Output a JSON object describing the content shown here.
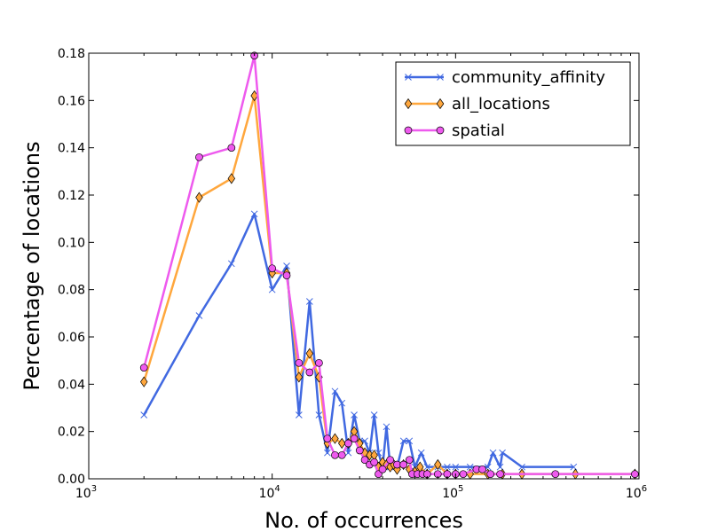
{
  "chart_data": {
    "type": "line",
    "xlabel": "No. of occurrences",
    "ylabel": "Percentage of locations",
    "xscale": "log",
    "xlim": [
      1000,
      1000000
    ],
    "ylim": [
      0,
      0.18
    ],
    "x_ticks": [
      {
        "base": "10",
        "exp": "3"
      },
      {
        "base": "10",
        "exp": "4"
      },
      {
        "base": "10",
        "exp": "5"
      },
      {
        "base": "10",
        "exp": "6"
      }
    ],
    "y_ticks": [
      "0.00",
      "0.02",
      "0.04",
      "0.06",
      "0.08",
      "0.10",
      "0.12",
      "0.14",
      "0.16",
      "0.18"
    ],
    "legend_position": "top-right",
    "series": [
      {
        "name": "community_affinity",
        "color": "#4169e1",
        "marker": "x",
        "points": [
          [
            2000,
            0.027
          ],
          [
            4000,
            0.069
          ],
          [
            6000,
            0.091
          ],
          [
            8000,
            0.112
          ],
          [
            10000,
            0.08
          ],
          [
            12000,
            0.09
          ],
          [
            14000,
            0.027
          ],
          [
            16000,
            0.075
          ],
          [
            18000,
            0.027
          ],
          [
            20000,
            0.011
          ],
          [
            22000,
            0.037
          ],
          [
            24000,
            0.032
          ],
          [
            26000,
            0.011
          ],
          [
            28000,
            0.027
          ],
          [
            30000,
            0.016
          ],
          [
            32000,
            0.016
          ],
          [
            34000,
            0.011
          ],
          [
            36000,
            0.027
          ],
          [
            38000,
            0.011
          ],
          [
            40000,
            0.005
          ],
          [
            42000,
            0.022
          ],
          [
            44000,
            0.005
          ],
          [
            48000,
            0.005
          ],
          [
            52000,
            0.016
          ],
          [
            56000,
            0.016
          ],
          [
            60000,
            0.005
          ],
          [
            65000,
            0.011
          ],
          [
            70000,
            0.005
          ],
          [
            80000,
            0.005
          ],
          [
            90000,
            0.005
          ],
          [
            100000,
            0.005
          ],
          [
            120000,
            0.005
          ],
          [
            150000,
            0.005
          ],
          [
            160000,
            0.011
          ],
          [
            175000,
            0.005
          ],
          [
            180000,
            0.011
          ],
          [
            230000,
            0.005
          ],
          [
            440000,
            0.005
          ]
        ]
      },
      {
        "name": "all_locations",
        "color": "#ffa73d",
        "marker": "diamond",
        "points": [
          [
            2000,
            0.041
          ],
          [
            4000,
            0.119
          ],
          [
            6000,
            0.127
          ],
          [
            8000,
            0.162
          ],
          [
            10000,
            0.087
          ],
          [
            12000,
            0.087
          ],
          [
            14000,
            0.043
          ],
          [
            16000,
            0.053
          ],
          [
            18000,
            0.043
          ],
          [
            20000,
            0.015
          ],
          [
            22000,
            0.017
          ],
          [
            24000,
            0.015
          ],
          [
            26000,
            0.015
          ],
          [
            28000,
            0.02
          ],
          [
            30000,
            0.015
          ],
          [
            32000,
            0.011
          ],
          [
            34000,
            0.01
          ],
          [
            36000,
            0.01
          ],
          [
            38000,
            0.005
          ],
          [
            40000,
            0.007
          ],
          [
            42000,
            0.006
          ],
          [
            44000,
            0.005
          ],
          [
            46000,
            0.006
          ],
          [
            48000,
            0.004
          ],
          [
            52000,
            0.006
          ],
          [
            56000,
            0.004
          ],
          [
            60000,
            0.003
          ],
          [
            64000,
            0.005
          ],
          [
            70000,
            0.002
          ],
          [
            80000,
            0.006
          ],
          [
            90000,
            0.002
          ],
          [
            100000,
            0.002
          ],
          [
            120000,
            0.002
          ],
          [
            150000,
            0.002
          ],
          [
            180000,
            0.002
          ],
          [
            230000,
            0.002
          ],
          [
            450000,
            0.002
          ],
          [
            950000,
            0.002
          ]
        ]
      },
      {
        "name": "spatial",
        "color": "#ee5aee",
        "marker": "circle",
        "points": [
          [
            2000,
            0.047
          ],
          [
            4000,
            0.136
          ],
          [
            6000,
            0.14
          ],
          [
            8000,
            0.179
          ],
          [
            10000,
            0.089
          ],
          [
            12000,
            0.086
          ],
          [
            14000,
            0.049
          ],
          [
            16000,
            0.045
          ],
          [
            18000,
            0.049
          ],
          [
            20000,
            0.017
          ],
          [
            22000,
            0.01
          ],
          [
            24000,
            0.01
          ],
          [
            26000,
            0.015
          ],
          [
            28000,
            0.017
          ],
          [
            30000,
            0.012
          ],
          [
            32000,
            0.008
          ],
          [
            34000,
            0.006
          ],
          [
            36000,
            0.007
          ],
          [
            38000,
            0.002
          ],
          [
            40000,
            0.004
          ],
          [
            44000,
            0.008
          ],
          [
            48000,
            0.006
          ],
          [
            52000,
            0.006
          ],
          [
            56000,
            0.008
          ],
          [
            58000,
            0.002
          ],
          [
            62000,
            0.002
          ],
          [
            66000,
            0.002
          ],
          [
            70000,
            0.002
          ],
          [
            80000,
            0.002
          ],
          [
            90000,
            0.002
          ],
          [
            100000,
            0.002
          ],
          [
            110000,
            0.002
          ],
          [
            130000,
            0.004
          ],
          [
            140000,
            0.004
          ],
          [
            155000,
            0.002
          ],
          [
            175000,
            0.002
          ],
          [
            350000,
            0.002
          ],
          [
            950000,
            0.002
          ]
        ]
      }
    ]
  }
}
